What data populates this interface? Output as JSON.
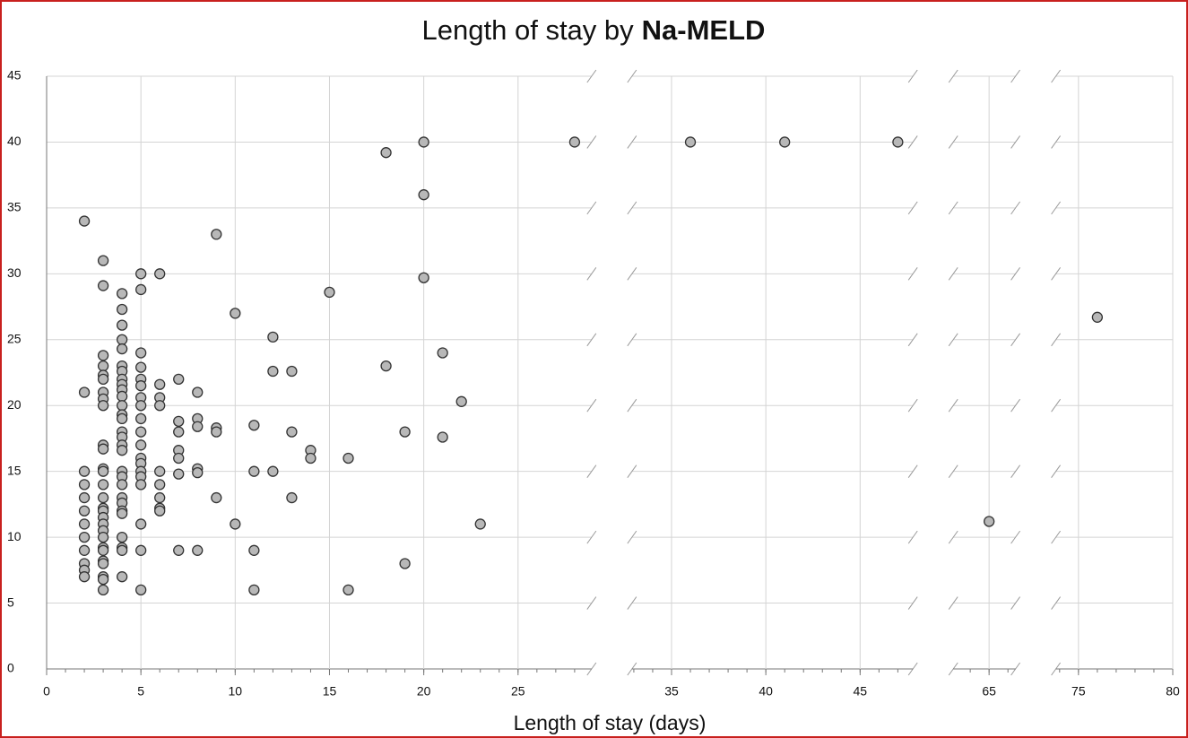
{
  "chart_data": {
    "type": "scatter",
    "title": "Length of stay by",
    "title_bold": "Na-MELD",
    "x_label": "Length of stay (days)",
    "x_segments": [
      [
        0,
        28.9
      ],
      [
        32.9,
        47.8
      ],
      [
        63.1,
        66.4
      ],
      [
        73.8,
        80
      ]
    ],
    "ylim": [
      0,
      45
    ],
    "xticks": [
      0,
      5,
      10,
      15,
      20,
      25,
      35,
      40,
      45,
      65,
      75,
      80
    ],
    "yticks": [
      0,
      5,
      10,
      15,
      20,
      25,
      30,
      35,
      40,
      45
    ],
    "grid": true,
    "color": "#b8b8b8",
    "x": [
      2,
      2,
      2,
      2,
      2,
      2,
      2,
      2,
      2,
      2,
      2,
      2,
      3,
      3,
      3,
      3,
      3,
      3,
      3,
      3,
      3,
      3,
      3,
      3,
      3,
      3,
      3,
      3,
      3,
      3,
      3,
      3,
      3,
      3,
      3,
      3,
      3,
      3,
      3,
      3,
      4,
      4,
      4,
      4,
      4,
      4,
      4,
      4,
      4,
      4,
      4,
      4,
      4,
      4,
      4,
      4,
      4,
      4,
      4,
      4,
      4,
      4,
      4,
      4,
      4,
      4,
      4,
      4,
      4,
      5,
      5,
      5,
      5,
      5,
      5,
      5,
      5,
      5,
      5,
      5,
      5,
      5,
      5,
      5,
      5,
      5,
      5,
      5,
      6,
      6,
      6,
      6,
      6,
      6,
      6,
      6,
      6,
      7,
      7,
      7,
      7,
      7,
      7,
      7,
      8,
      8,
      8,
      8,
      8,
      8,
      9,
      9,
      9,
      9,
      10,
      10,
      11,
      11,
      11,
      11,
      12,
      12,
      12,
      13,
      13,
      13,
      14,
      14,
      15,
      16,
      16,
      18,
      18,
      19,
      19,
      20,
      20,
      20,
      21,
      21,
      22,
      23,
      28,
      36,
      41,
      47,
      65,
      76
    ],
    "y": [
      34,
      21,
      15,
      14,
      13,
      12,
      11,
      10,
      9,
      8,
      7.5,
      7,
      31,
      29.1,
      23.8,
      23,
      22.3,
      22,
      21,
      20.5,
      20,
      17,
      16.7,
      15.2,
      15,
      14,
      13,
      12.2,
      12,
      11.5,
      11,
      10.5,
      10,
      9.2,
      9,
      8.2,
      8,
      7,
      6.8,
      6,
      28.5,
      27.3,
      26.1,
      25,
      24.3,
      23,
      22.6,
      22,
      21.6,
      21.2,
      20.7,
      20,
      19.3,
      19,
      18,
      17.6,
      17,
      16.6,
      15,
      14.6,
      14,
      13,
      12.6,
      12,
      11.8,
      10,
      9.2,
      9,
      7,
      30,
      28.8,
      24,
      22.9,
      22,
      21.5,
      20.6,
      20,
      19,
      18,
      17,
      16,
      15.6,
      15,
      14.6,
      14,
      11,
      9,
      6,
      30,
      21.6,
      20.6,
      20,
      15,
      14,
      13,
      12.2,
      12,
      22,
      18.8,
      18,
      16.6,
      16,
      14.8,
      9,
      21,
      19,
      18.4,
      15.2,
      14.9,
      9,
      33,
      18.3,
      18,
      13,
      27,
      11,
      18.5,
      15,
      9,
      6,
      25.2,
      22.6,
      15,
      22.6,
      18,
      13,
      16.6,
      16,
      28.6,
      16,
      6,
      39.2,
      23,
      18,
      8,
      40,
      36,
      29.7,
      24,
      17.6,
      20.3,
      11,
      40,
      40,
      40,
      40,
      11.2,
      26.7
    ]
  }
}
